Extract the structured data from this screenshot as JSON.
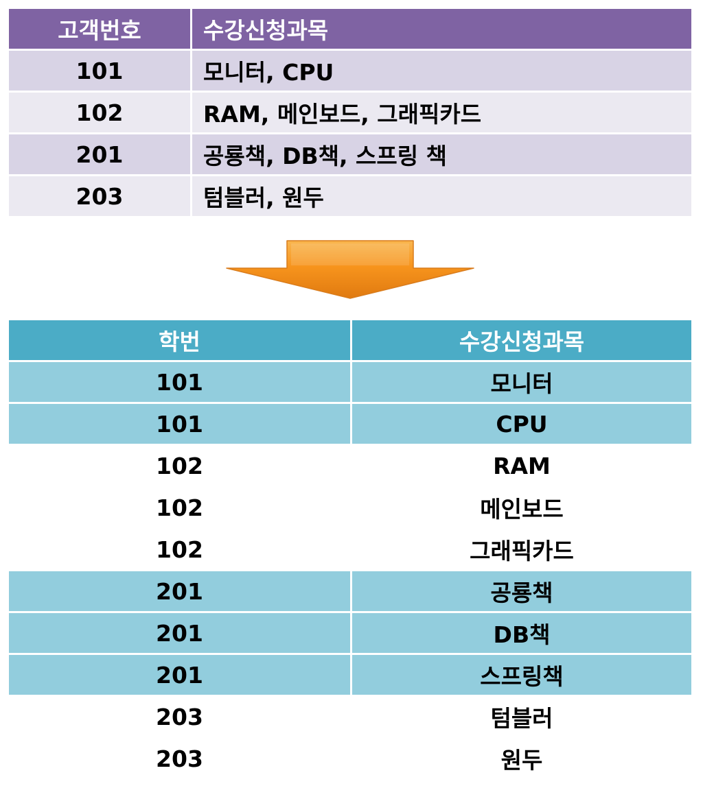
{
  "top_table": {
    "headers": [
      "고객번호",
      "수강신청과목"
    ],
    "rows": [
      [
        "101",
        "모니터, CPU"
      ],
      [
        "102",
        "RAM, 메인보드, 그래픽카드"
      ],
      [
        "201",
        "공룡책, DB책, 스프링 책"
      ],
      [
        "203",
        "텀블러, 원두"
      ]
    ]
  },
  "bottom_table": {
    "headers": [
      "학번",
      "수강신청과목"
    ],
    "rows": [
      [
        "101",
        "모니터"
      ],
      [
        "101",
        "CPU"
      ],
      [
        "102",
        "RAM"
      ],
      [
        "102",
        "메인보드"
      ],
      [
        "102",
        "그래픽카드"
      ],
      [
        "201",
        "공룡책"
      ],
      [
        "201",
        "DB책"
      ],
      [
        "201",
        "스프링책"
      ],
      [
        "203",
        "텀블러"
      ],
      [
        "203",
        "원두"
      ]
    ]
  },
  "colors": {
    "top_header": "#7f63a3",
    "top_row_dark": "#d8d3e5",
    "top_row_light": "#ebe9f1",
    "bottom_header": "#4bacc6",
    "bottom_row_shade": "#92cddd",
    "arrow": "#f7941d"
  },
  "icons": {
    "transform_arrow": "down-arrow-icon"
  }
}
